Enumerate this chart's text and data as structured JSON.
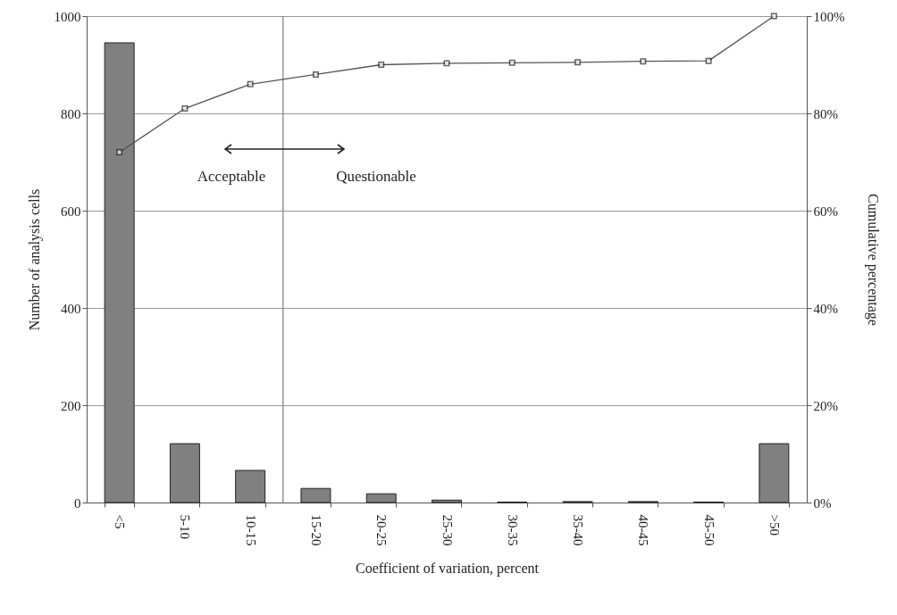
{
  "chart_data": {
    "type": "bar",
    "xlabel": "Coefficient of variation, percent",
    "ylabel": "Number of analysis cells",
    "y2label": "Cumulative percentage",
    "categories": [
      "<5",
      "5-10",
      "10-15",
      "15-20",
      "20-25",
      "25-30",
      "30-35",
      "35-40",
      "40-45",
      "45-50",
      ">50"
    ],
    "series": [
      {
        "color": "#808080",
        "values": [
          945,
          121,
          66,
          29,
          18,
          5,
          1,
          2,
          2,
          1,
          121
        ]
      },
      {
        "type": "line",
        "axis": "y2",
        "color": "#555555",
        "marker": "square",
        "values": [
          72,
          81,
          86,
          88,
          90,
          90.3,
          90.4,
          90.5,
          90.7,
          90.8,
          100
        ]
      }
    ],
    "ylim": [
      0,
      1000
    ],
    "yticks": [
      0,
      200,
      400,
      600,
      800,
      1000
    ],
    "y2lim": [
      0,
      100
    ],
    "y2ticks": [
      {
        "value": 0,
        "label": "0%"
      },
      {
        "value": 20,
        "label": "20%"
      },
      {
        "value": 40,
        "label": "40%"
      },
      {
        "value": 60,
        "label": "60%"
      },
      {
        "value": 80,
        "label": "80%"
      },
      {
        "value": 100,
        "label": "100%"
      }
    ],
    "grid": "y",
    "ref_lines": [
      {
        "axis": "x",
        "value": "15-20",
        "color": "#808080"
      }
    ],
    "annotations": [
      "Acceptable",
      "Questionable"
    ]
  }
}
